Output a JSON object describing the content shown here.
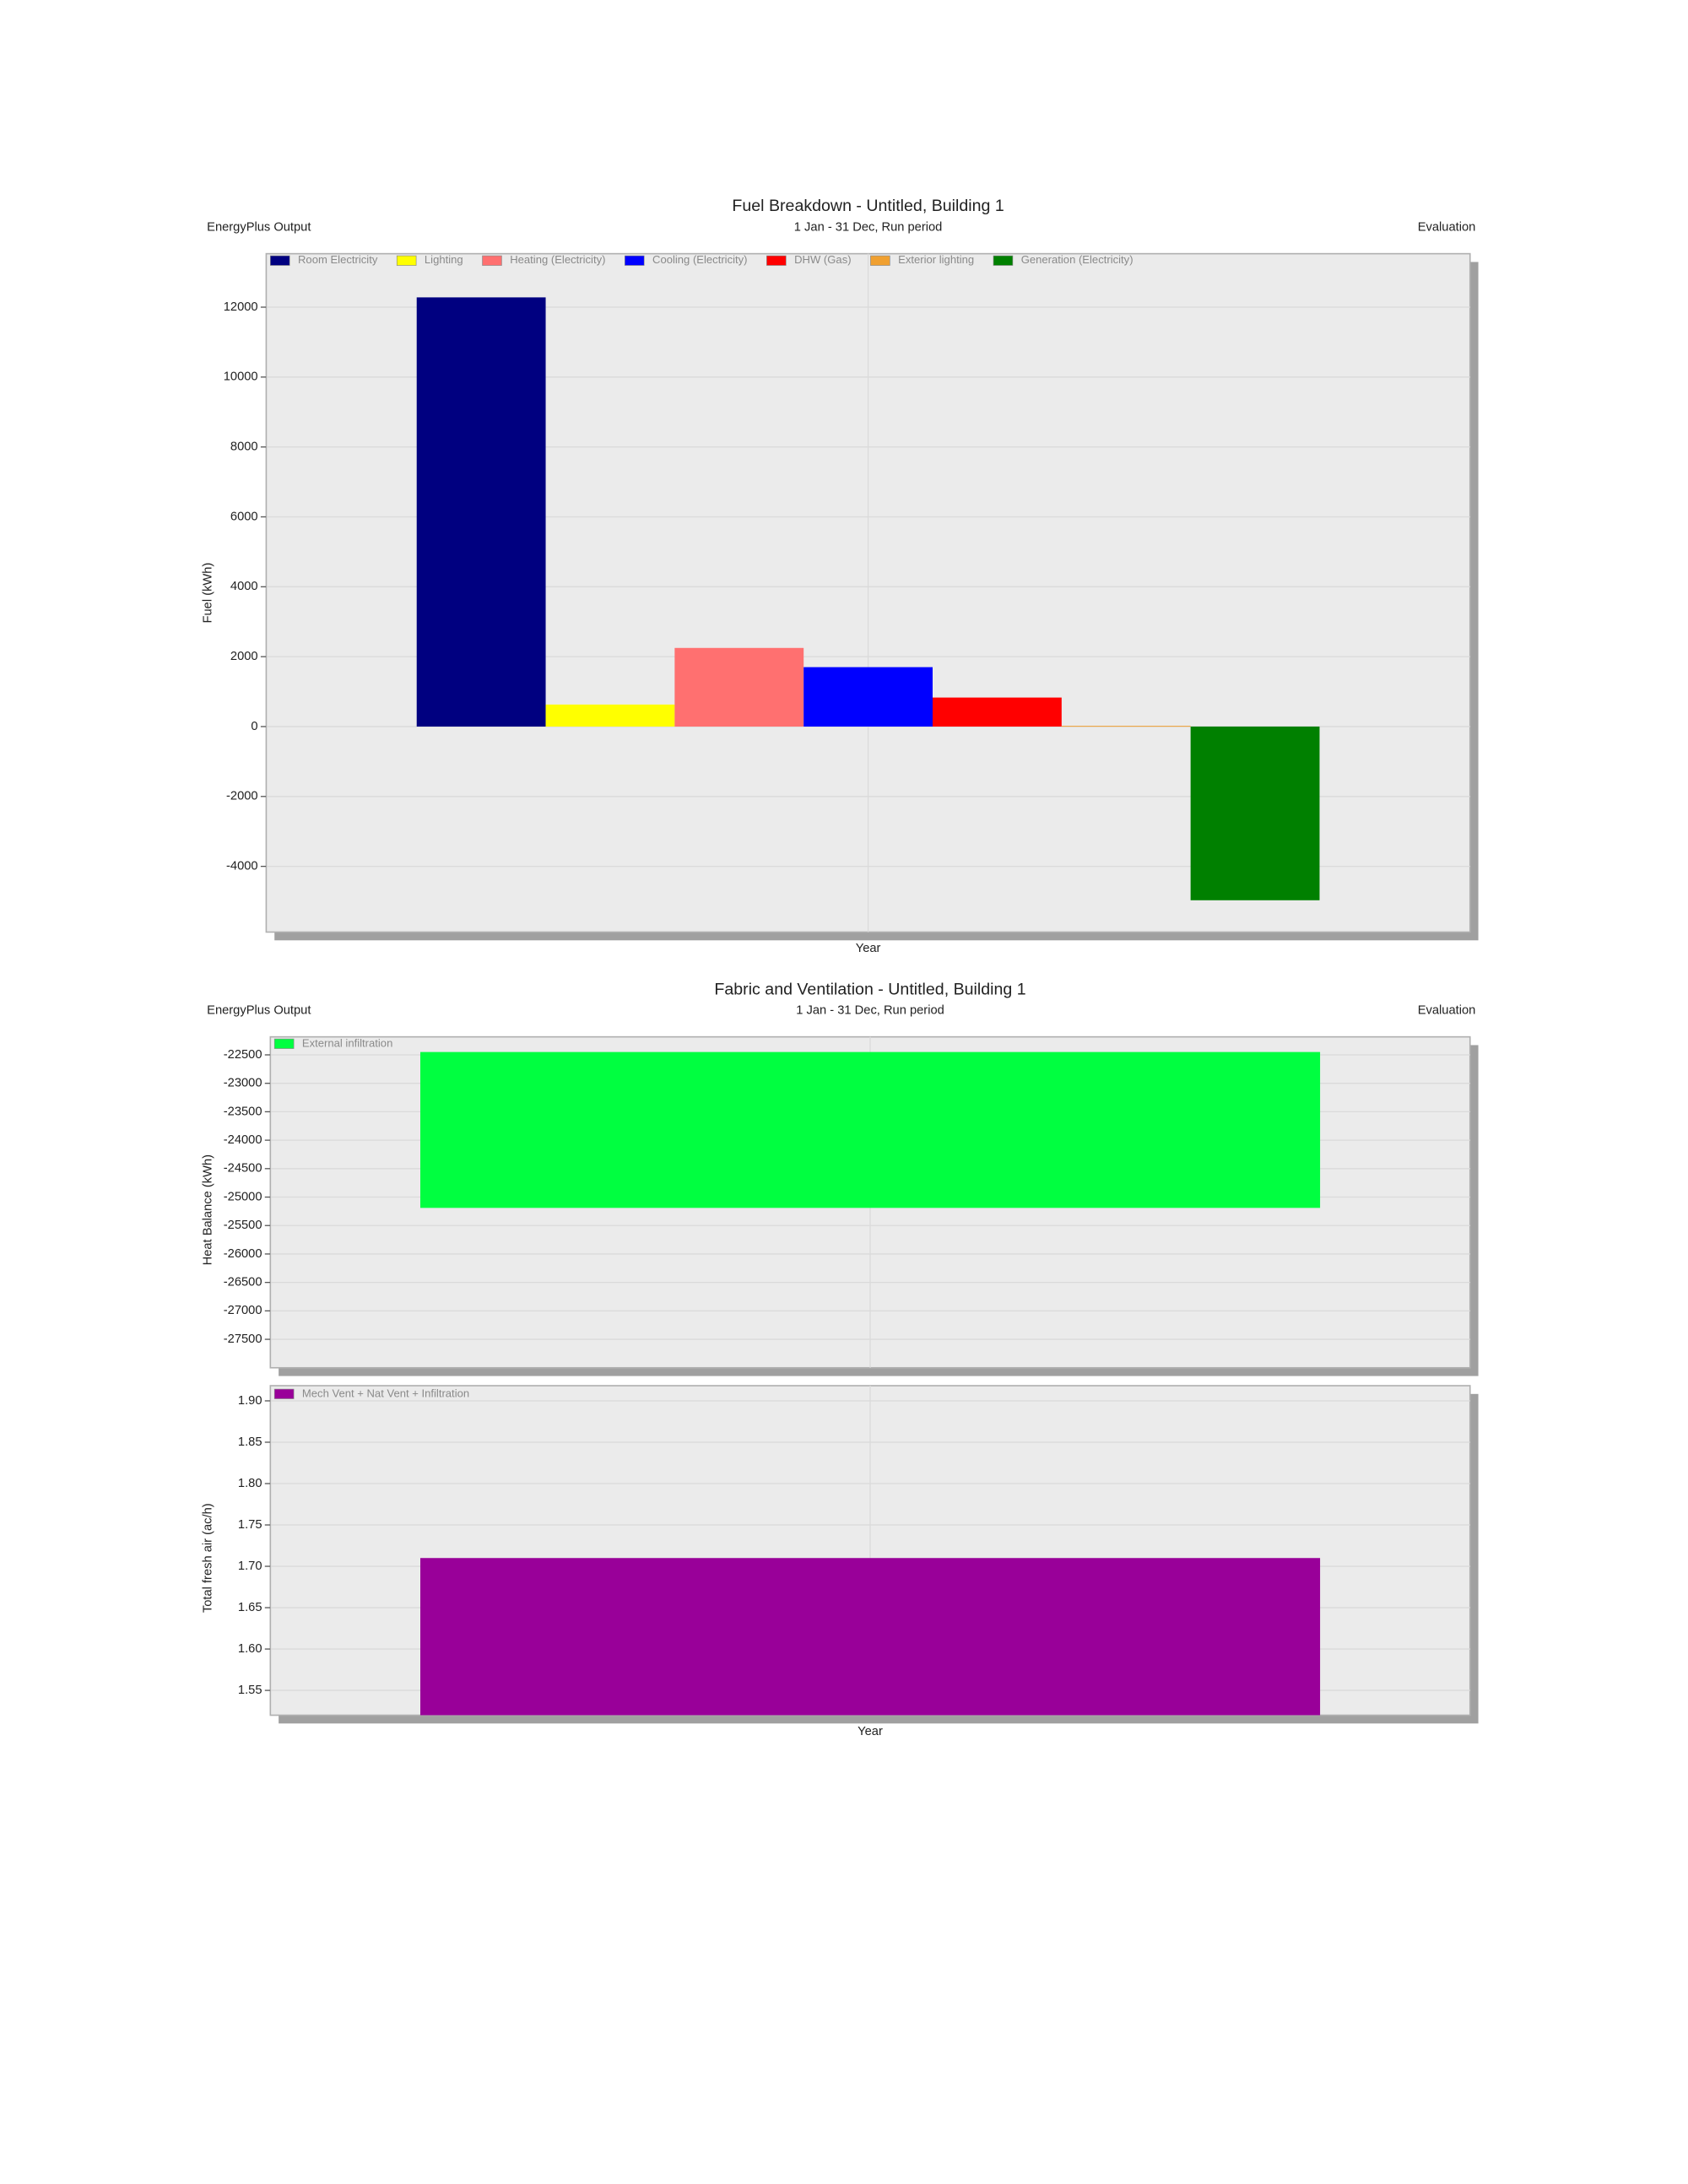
{
  "chart_data": [
    {
      "type": "bar",
      "title": "Fuel Breakdown - Untitled, Building 1",
      "subtitle": "1 Jan - 31 Dec, Run period",
      "left_header": "EnergyPlus Output",
      "right_header": "Evaluation",
      "y_label": "Fuel (kWh)",
      "categories": [
        "Year"
      ],
      "series": [
        {
          "name": "Room Electricity",
          "color": "#000080",
          "values": [
            12280
          ]
        },
        {
          "name": "Lighting",
          "color": "#ffff00",
          "values": [
            630
          ]
        },
        {
          "name": "Heating (Electricity)",
          "color": "#ff7070",
          "values": [
            2250
          ]
        },
        {
          "name": "Cooling (Electricity)",
          "color": "#0000ff",
          "values": [
            1700
          ]
        },
        {
          "name": "DHW (Gas)",
          "color": "#ff0000",
          "values": [
            830
          ]
        },
        {
          "name": "Exterior lighting",
          "color": "#f0a030",
          "values": [
            20
          ]
        },
        {
          "name": "Generation (Electricity)",
          "color": "#008000",
          "values": [
            -4970
          ]
        }
      ],
      "ylim": [
        -5880,
        13530
      ],
      "yticks": [
        -4000,
        -2000,
        0,
        2000,
        4000,
        6000,
        8000,
        10000,
        12000
      ],
      "grid": true
    },
    {
      "type": "bar",
      "title": "Fabric and Ventilation - Untitled, Building 1",
      "subtitle": "1 Jan - 31 Dec, Run period",
      "left_header": "EnergyPlus Output",
      "right_header": "Evaluation",
      "y_label": "Heat Balance (kWh)",
      "categories": [
        null
      ],
      "series": [
        {
          "name": "External infiltration",
          "color": "#00ff40",
          "values": [
            -25190
          ]
        }
      ],
      "ylim": [
        -28000,
        -22450
      ],
      "yticks": [
        -27500,
        -27000,
        -26500,
        -26000,
        -25500,
        -25000,
        -24500,
        -24000,
        -23500,
        -23000,
        -22500
      ],
      "grid": true
    },
    {
      "type": "bar",
      "y_label": "Total fresh air (ac/h)",
      "categories": [
        "Year"
      ],
      "series": [
        {
          "name": "Mech Vent + Nat Vent + Infiltration",
          "color": "#990099",
          "values": [
            1.71
          ]
        }
      ],
      "ylim": [
        1.52,
        1.9
      ],
      "yticks": [
        1.55,
        {
          "value": 1.6,
          "label": "1.60"
        },
        1.65,
        {
          "value": 1.7,
          "label": "1.70"
        },
        1.75,
        {
          "value": 1.8,
          "label": "1.80"
        },
        1.85,
        {
          "value": 1.9,
          "label": "1.90"
        }
      ],
      "grid": true
    }
  ]
}
